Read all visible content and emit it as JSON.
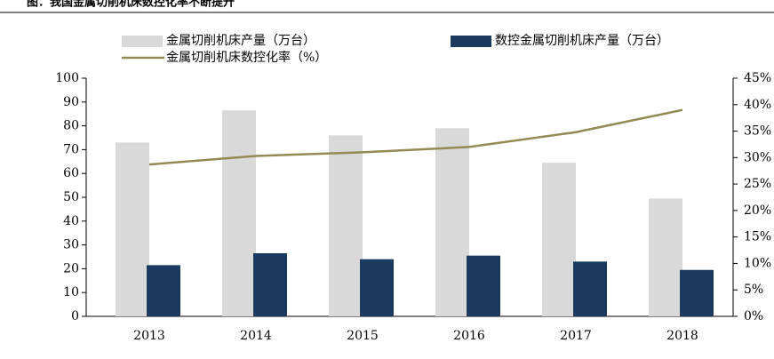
{
  "chart_data": {
    "type": "bar-line",
    "title": "图：我国金属切削机床数控化率不断提升",
    "categories": [
      "2013",
      "2014",
      "2015",
      "2016",
      "2017",
      "2018"
    ],
    "series": [
      {
        "name": "金属切削机床产量（万台）",
        "color": "#d9d9d9",
        "type": "bar",
        "values": [
          73,
          86.5,
          76,
          79,
          64.5,
          49.5
        ]
      },
      {
        "name": "数控金属切削机床产量（万台）",
        "color": "#1b3a5e",
        "type": "bar",
        "values": [
          21.5,
          26.5,
          24,
          25.5,
          23,
          19.5
        ]
      },
      {
        "name": "金属切削机床数控化率（%）",
        "color": "#948a54",
        "type": "line",
        "axis": "y2",
        "values": [
          28.7,
          30.3,
          31,
          32,
          34.8,
          39
        ]
      }
    ],
    "ylim": [
      0,
      100
    ],
    "yticks": [
      0,
      10,
      20,
      30,
      40,
      50,
      60,
      70,
      80,
      90,
      100
    ],
    "y2lim": [
      0,
      45
    ],
    "y2ticks": [
      {
        "value": 0,
        "label": "0%"
      },
      {
        "value": 5,
        "label": "5%"
      },
      {
        "value": 10,
        "label": "10%"
      },
      {
        "value": 15,
        "label": "15%"
      },
      {
        "value": 20,
        "label": "20%"
      },
      {
        "value": 25,
        "label": "25%"
      },
      {
        "value": 30,
        "label": "30%"
      },
      {
        "value": 35,
        "label": "35%"
      },
      {
        "value": 40,
        "label": "40%"
      },
      {
        "value": 45,
        "label": "45%"
      }
    ]
  }
}
